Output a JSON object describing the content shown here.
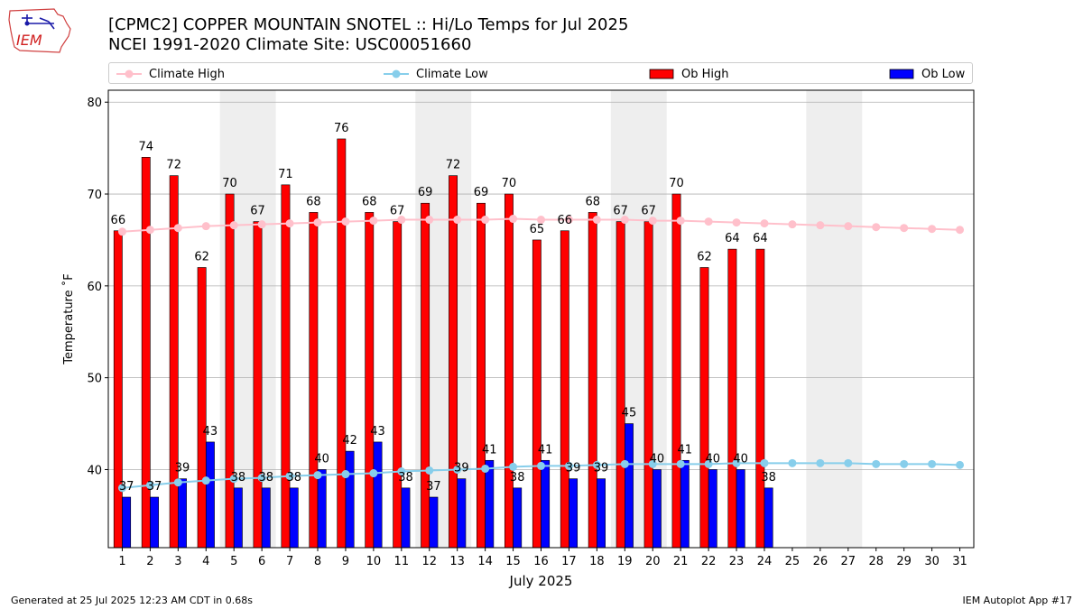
{
  "header": {
    "title_line1": "[CPMC2] COPPER MOUNTAIN SNOTEL :: Hi/Lo Temps for Jul 2025",
    "title_line2": "NCEI 1991-2020 Climate Site: USC00051660",
    "logo_text": "IEM"
  },
  "footer": {
    "generated": "Generated at 25 Jul 2025 12:23 AM CDT in 0.68s",
    "app": "IEM Autoplot App #17"
  },
  "colors": {
    "ob_high": "#ff0000",
    "ob_low": "#0000ff",
    "climate_high": "#ffc0cb",
    "climate_low": "#87ceeb",
    "weekend_shade": "#eeeeee",
    "grid": "#b0b0b0"
  },
  "chart_data": {
    "type": "bar",
    "xlabel": "July 2025",
    "ylabel": "Temperature ˚F",
    "xlim": [
      0.5,
      31.5
    ],
    "ylim": [
      31.5,
      81.3
    ],
    "yticks": [
      40,
      50,
      60,
      70,
      80
    ],
    "grid": "horizontal",
    "legend_placement": "top",
    "categories": [
      "1",
      "2",
      "3",
      "4",
      "5",
      "6",
      "7",
      "8",
      "9",
      "10",
      "11",
      "12",
      "13",
      "14",
      "15",
      "16",
      "17",
      "18",
      "19",
      "20",
      "21",
      "22",
      "23",
      "24",
      "25",
      "26",
      "27",
      "28",
      "29",
      "30",
      "31"
    ],
    "weekend_spans": [
      [
        5,
        6
      ],
      [
        12,
        13
      ],
      [
        19,
        20
      ],
      [
        26,
        27
      ]
    ],
    "series": [
      {
        "name": "Climate High",
        "kind": "line",
        "values": [
          65.9,
          66.1,
          66.3,
          66.5,
          66.6,
          66.7,
          66.8,
          66.9,
          67.0,
          67.1,
          67.2,
          67.2,
          67.2,
          67.2,
          67.3,
          67.2,
          67.2,
          67.2,
          67.2,
          67.1,
          67.1,
          67.0,
          66.9,
          66.8,
          66.7,
          66.6,
          66.5,
          66.4,
          66.3,
          66.2,
          66.1
        ]
      },
      {
        "name": "Climate Low",
        "kind": "line",
        "values": [
          38.0,
          38.3,
          38.6,
          38.8,
          39.0,
          39.1,
          39.3,
          39.4,
          39.5,
          39.6,
          39.8,
          39.9,
          40.0,
          40.1,
          40.3,
          40.4,
          40.4,
          40.5,
          40.6,
          40.6,
          40.6,
          40.6,
          40.7,
          40.7,
          40.7,
          40.7,
          40.7,
          40.6,
          40.6,
          40.6,
          40.5
        ]
      },
      {
        "name": "Ob High",
        "kind": "bar",
        "values": [
          66,
          74,
          72,
          62,
          70,
          67,
          71,
          68,
          76,
          68,
          67,
          69,
          72,
          69,
          70,
          65,
          66,
          68,
          67,
          67,
          70,
          62,
          64,
          64,
          null,
          null,
          null,
          null,
          null,
          null,
          null
        ]
      },
      {
        "name": "Ob Low",
        "kind": "bar",
        "values": [
          37,
          37,
          39,
          43,
          38,
          38,
          38,
          40,
          42,
          43,
          38,
          37,
          39,
          41,
          38,
          41,
          39,
          39,
          45,
          40,
          41,
          40,
          40,
          38,
          null,
          null,
          null,
          null,
          null,
          null,
          null
        ]
      }
    ]
  }
}
